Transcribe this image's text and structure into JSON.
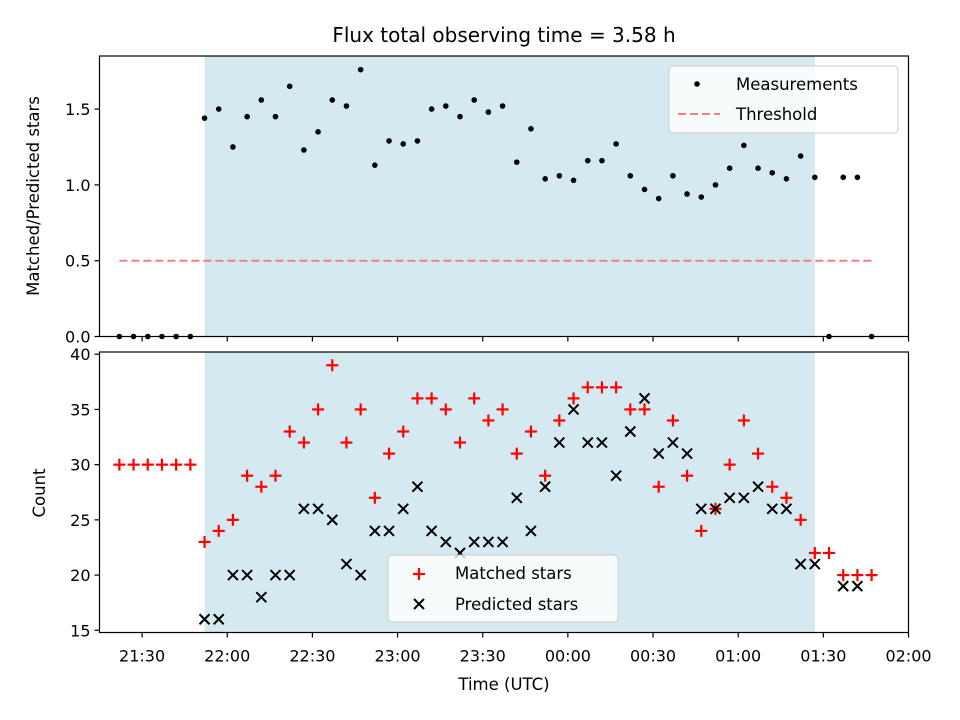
{
  "chart_data": [
    {
      "type": "scatter",
      "title": "Flux total observing time = 3.58 h",
      "xlabel": "",
      "ylabel": "Matched/Predicted stars",
      "xlim": [
        "21:15",
        "02:00"
      ],
      "ylim": [
        0,
        1.85
      ],
      "yticks": [
        "0.0",
        "0.5",
        "1.0",
        "1.5"
      ],
      "shaded_span": {
        "from": "21:52",
        "to": "01:27",
        "color": "#d4eaf0"
      },
      "legend_position": "top-right",
      "series": [
        {
          "name": "Measurements",
          "marker": "dot",
          "color": "#000000",
          "points": [
            [
              "21:22",
              0.0
            ],
            [
              "21:27",
              0.0
            ],
            [
              "21:32",
              0.0
            ],
            [
              "21:37",
              0.0
            ],
            [
              "21:42",
              0.0
            ],
            [
              "21:47",
              0.0
            ],
            [
              "21:52",
              1.44
            ],
            [
              "21:57",
              1.5
            ],
            [
              "22:02",
              1.25
            ],
            [
              "22:07",
              1.45
            ],
            [
              "22:12",
              1.56
            ],
            [
              "22:17",
              1.45
            ],
            [
              "22:22",
              1.65
            ],
            [
              "22:27",
              1.23
            ],
            [
              "22:32",
              1.35
            ],
            [
              "22:37",
              1.56
            ],
            [
              "22:42",
              1.52
            ],
            [
              "22:47",
              1.76
            ],
            [
              "22:52",
              1.13
            ],
            [
              "22:57",
              1.29
            ],
            [
              "23:02",
              1.27
            ],
            [
              "23:07",
              1.29
            ],
            [
              "23:12",
              1.5
            ],
            [
              "23:17",
              1.52
            ],
            [
              "23:22",
              1.45
            ],
            [
              "23:27",
              1.56
            ],
            [
              "23:32",
              1.48
            ],
            [
              "23:37",
              1.52
            ],
            [
              "23:42",
              1.15
            ],
            [
              "23:47",
              1.37
            ],
            [
              "23:52",
              1.04
            ],
            [
              "23:57",
              1.06
            ],
            [
              "00:02",
              1.03
            ],
            [
              "00:07",
              1.16
            ],
            [
              "00:12",
              1.16
            ],
            [
              "00:17",
              1.27
            ],
            [
              "00:22",
              1.06
            ],
            [
              "00:27",
              0.97
            ],
            [
              "00:32",
              0.91
            ],
            [
              "00:37",
              1.06
            ],
            [
              "00:42",
              0.94
            ],
            [
              "00:47",
              0.92
            ],
            [
              "00:52",
              1.0
            ],
            [
              "00:57",
              1.11
            ],
            [
              "01:02",
              1.26
            ],
            [
              "01:07",
              1.11
            ],
            [
              "01:12",
              1.08
            ],
            [
              "01:17",
              1.04
            ],
            [
              "01:22",
              1.19
            ],
            [
              "01:27",
              1.05
            ],
            [
              "01:32",
              0.0
            ],
            [
              "01:37",
              1.05
            ],
            [
              "01:42",
              1.05
            ],
            [
              "01:47",
              0.0
            ]
          ]
        },
        {
          "name": "Threshold",
          "marker": "dashed-line",
          "color": "#f08080",
          "points": [
            [
              "21:22",
              0.5
            ],
            [
              "01:47",
              0.5
            ]
          ]
        }
      ]
    },
    {
      "type": "scatter",
      "title": "",
      "xlabel": "Time (UTC)",
      "ylabel": "Count",
      "xlim": [
        "21:15",
        "02:00"
      ],
      "ylim": [
        14.8,
        40.2
      ],
      "yticks": [
        "15",
        "20",
        "25",
        "30",
        "35",
        "40"
      ],
      "xticks": [
        "21:30",
        "22:00",
        "22:30",
        "23:00",
        "23:30",
        "00:00",
        "00:30",
        "01:00",
        "01:30",
        "02:00"
      ],
      "shaded_span": {
        "from": "21:52",
        "to": "01:27",
        "color": "#d4eaf0"
      },
      "legend_position": "lower-center",
      "series": [
        {
          "name": "Matched stars",
          "marker": "plus",
          "color": "#ff0000",
          "points": [
            [
              "21:22",
              30
            ],
            [
              "21:27",
              30
            ],
            [
              "21:32",
              30
            ],
            [
              "21:37",
              30
            ],
            [
              "21:42",
              30
            ],
            [
              "21:47",
              30
            ],
            [
              "21:52",
              23
            ],
            [
              "21:57",
              24
            ],
            [
              "22:02",
              25
            ],
            [
              "22:07",
              29
            ],
            [
              "22:12",
              28
            ],
            [
              "22:17",
              29
            ],
            [
              "22:22",
              33
            ],
            [
              "22:27",
              32
            ],
            [
              "22:32",
              35
            ],
            [
              "22:37",
              39
            ],
            [
              "22:42",
              32
            ],
            [
              "22:47",
              35
            ],
            [
              "22:52",
              27
            ],
            [
              "22:57",
              31
            ],
            [
              "23:02",
              33
            ],
            [
              "23:07",
              36
            ],
            [
              "23:12",
              36
            ],
            [
              "23:17",
              35
            ],
            [
              "23:22",
              32
            ],
            [
              "23:27",
              36
            ],
            [
              "23:32",
              34
            ],
            [
              "23:37",
              35
            ],
            [
              "23:42",
              31
            ],
            [
              "23:47",
              33
            ],
            [
              "23:52",
              29
            ],
            [
              "23:57",
              34
            ],
            [
              "00:02",
              36
            ],
            [
              "00:07",
              37
            ],
            [
              "00:12",
              37
            ],
            [
              "00:17",
              37
            ],
            [
              "00:22",
              35
            ],
            [
              "00:27",
              35
            ],
            [
              "00:32",
              28
            ],
            [
              "00:37",
              34
            ],
            [
              "00:42",
              29
            ],
            [
              "00:47",
              24
            ],
            [
              "00:52",
              26
            ],
            [
              "00:57",
              30
            ],
            [
              "01:02",
              34
            ],
            [
              "01:07",
              31
            ],
            [
              "01:12",
              28
            ],
            [
              "01:17",
              27
            ],
            [
              "01:22",
              25
            ],
            [
              "01:27",
              22
            ],
            [
              "01:32",
              22
            ],
            [
              "01:37",
              20
            ],
            [
              "01:42",
              20
            ],
            [
              "01:47",
              20
            ]
          ]
        },
        {
          "name": "Predicted stars",
          "marker": "x",
          "color": "#000000",
          "points": [
            [
              "21:52",
              16
            ],
            [
              "21:57",
              16
            ],
            [
              "22:02",
              20
            ],
            [
              "22:07",
              20
            ],
            [
              "22:12",
              18
            ],
            [
              "22:17",
              20
            ],
            [
              "22:22",
              20
            ],
            [
              "22:27",
              26
            ],
            [
              "22:32",
              26
            ],
            [
              "22:37",
              25
            ],
            [
              "22:42",
              21
            ],
            [
              "22:47",
              20
            ],
            [
              "22:52",
              24
            ],
            [
              "22:57",
              24
            ],
            [
              "23:02",
              26
            ],
            [
              "23:07",
              28
            ],
            [
              "23:12",
              24
            ],
            [
              "23:17",
              23
            ],
            [
              "23:22",
              22
            ],
            [
              "23:27",
              23
            ],
            [
              "23:32",
              23
            ],
            [
              "23:37",
              23
            ],
            [
              "23:42",
              27
            ],
            [
              "23:47",
              24
            ],
            [
              "23:52",
              28
            ],
            [
              "23:57",
              32
            ],
            [
              "00:02",
              35
            ],
            [
              "00:07",
              32
            ],
            [
              "00:12",
              32
            ],
            [
              "00:17",
              29
            ],
            [
              "00:22",
              33
            ],
            [
              "00:27",
              36
            ],
            [
              "00:32",
              31
            ],
            [
              "00:37",
              32
            ],
            [
              "00:42",
              31
            ],
            [
              "00:47",
              26
            ],
            [
              "00:52",
              26
            ],
            [
              "00:57",
              27
            ],
            [
              "01:02",
              27
            ],
            [
              "01:07",
              28
            ],
            [
              "01:12",
              26
            ],
            [
              "01:17",
              26
            ],
            [
              "01:22",
              21
            ],
            [
              "01:27",
              21
            ],
            [
              "01:37",
              19
            ],
            [
              "01:42",
              19
            ]
          ]
        }
      ]
    }
  ]
}
